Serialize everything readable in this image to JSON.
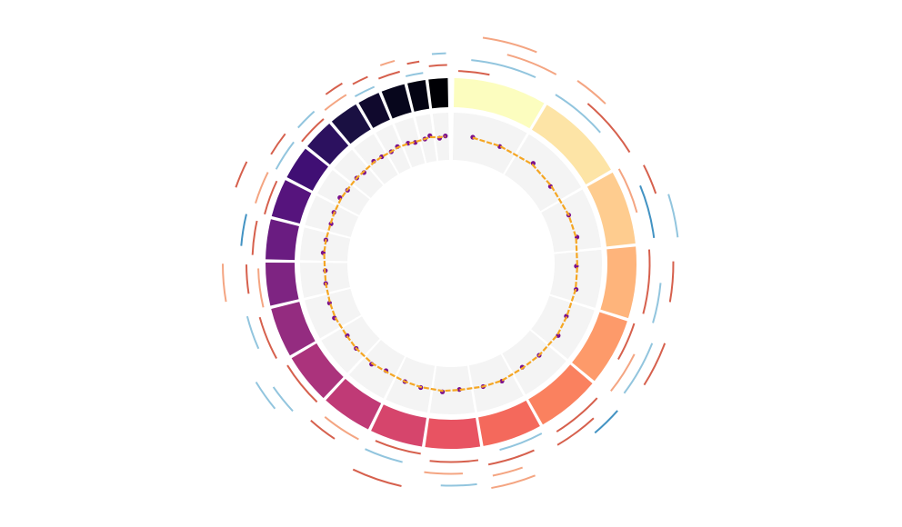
{
  "chart_data": {
    "type": "circos",
    "ideogram": {
      "lengths": [
        249,
        243,
        198,
        191,
        181,
        171,
        159,
        146,
        141,
        136,
        135,
        133,
        115,
        107,
        102,
        90,
        83,
        78,
        59,
        63,
        48,
        51
      ],
      "colors": [
        "#fcfdbf",
        "#fde4a6",
        "#fecc8f",
        "#feb47b",
        "#fd9a6a",
        "#fa815f",
        "#f4695c",
        "#e85362",
        "#d6456c",
        "#c03a76",
        "#ab337c",
        "#942c80",
        "#7e2482",
        "#6a1c81",
        "#56147d",
        "#400f74",
        "#2c115f",
        "#1a1042",
        "#10092d",
        "#07061c",
        "#030312",
        "#000004"
      ]
    },
    "ylim": [
      0,
      1
    ],
    "points": {
      "color": "#7a0f8c",
      "chrom": [
        0,
        0,
        1,
        1,
        2,
        2,
        3,
        3,
        4,
        4,
        5,
        5,
        6,
        6,
        7,
        7,
        8,
        8,
        9,
        9,
        10,
        10,
        11,
        11,
        12,
        12,
        13,
        13,
        14,
        14,
        15,
        15,
        16,
        16,
        17,
        17,
        18,
        18,
        19,
        19,
        20,
        20,
        21,
        21
      ],
      "pos": [
        75,
        185,
        70,
        180,
        60,
        150,
        55,
        145,
        55,
        135,
        50,
        130,
        45,
        120,
        45,
        110,
        40,
        105,
        40,
        100,
        40,
        100,
        40,
        100,
        35,
        85,
        30,
        80,
        30,
        75,
        25,
        65,
        25,
        60,
        25,
        60,
        15,
        45,
        20,
        47,
        15,
        36,
        15,
        38
      ],
      "values": [
        0.52,
        0.49,
        0.55,
        0.47,
        0.5,
        0.53,
        0.46,
        0.51,
        0.49,
        0.54,
        0.5,
        0.47,
        0.52,
        0.5,
        0.48,
        0.53,
        0.51,
        0.49,
        0.46,
        0.52,
        0.5,
        0.48,
        0.53,
        0.51,
        0.49,
        0.47,
        0.52,
        0.5,
        0.48,
        0.51,
        0.54,
        0.49,
        0.5,
        0.47,
        0.52,
        0.5,
        0.49,
        0.53,
        0.51,
        0.48,
        0.5,
        0.55,
        0.47,
        0.51
      ]
    },
    "trend": {
      "color": "#f5a623",
      "values": [
        0.51,
        0.5,
        0.52,
        0.49,
        0.5,
        0.51,
        0.48,
        0.5,
        0.5,
        0.52,
        0.5,
        0.49,
        0.51,
        0.5,
        0.49,
        0.51,
        0.5,
        0.49,
        0.48,
        0.5,
        0.5,
        0.49,
        0.51,
        0.5,
        0.49,
        0.48,
        0.5,
        0.5,
        0.49,
        0.5,
        0.51,
        0.5,
        0.5,
        0.49,
        0.5,
        0.5,
        0.49,
        0.51,
        0.5,
        0.49,
        0.5,
        0.52,
        0.49,
        0.5
      ]
    },
    "arcs": {
      "colors": [
        "#d6604d",
        "#f4a582",
        "#92c5de",
        "#4393c3"
      ],
      "chrom": [
        0,
        0,
        0,
        1,
        1,
        1,
        2,
        2,
        2,
        3,
        3,
        3,
        4,
        4,
        4,
        5,
        5,
        5,
        6,
        6,
        6,
        7,
        7,
        7,
        8,
        8,
        9,
        9,
        10,
        10,
        11,
        11,
        12,
        12,
        13,
        13,
        14,
        14,
        15,
        15,
        16,
        16,
        17,
        17,
        18,
        18,
        19,
        19,
        20,
        20,
        21,
        21,
        0,
        2,
        4,
        6,
        8,
        10,
        12,
        14
      ],
      "start": [
        10,
        40,
        120,
        5,
        80,
        30,
        0,
        60,
        20,
        10,
        90,
        40,
        0,
        70,
        30,
        20,
        60,
        10,
        5,
        40,
        80,
        10,
        50,
        20,
        0,
        40,
        10,
        60,
        5,
        30,
        10,
        50,
        0,
        40,
        10,
        30,
        0,
        20,
        5,
        30,
        0,
        20,
        5,
        30,
        0,
        10,
        5,
        20,
        0,
        10,
        5,
        15,
        60,
        100,
        20,
        60,
        30,
        60,
        30,
        40
      ],
      "end": [
        90,
        200,
        240,
        150,
        230,
        110,
        120,
        190,
        90,
        170,
        185,
        130,
        100,
        175,
        160,
        150,
        165,
        80,
        120,
        155,
        150,
        130,
        140,
        100,
        120,
        135,
        110,
        130,
        125,
        100,
        120,
        130,
        100,
        110,
        95,
        105,
        90,
        100,
        85,
        88,
        80,
        75,
        70,
        76,
        55,
        50,
        60,
        55,
        45,
        40,
        50,
        48,
        180,
        195,
        120,
        158,
        140,
        130,
        112,
        100
      ],
      "lane": [
        0,
        2,
        4,
        1,
        3,
        5,
        0,
        2,
        4,
        1,
        3,
        5,
        0,
        2,
        4,
        1,
        3,
        5,
        0,
        2,
        4,
        1,
        3,
        5,
        0,
        2,
        1,
        3,
        0,
        4,
        1,
        3,
        0,
        2,
        1,
        3,
        0,
        2,
        1,
        3,
        0,
        2,
        1,
        3,
        0,
        2,
        1,
        3,
        0,
        2,
        1,
        3,
        6,
        6,
        6,
        6,
        6,
        6,
        6,
        6
      ],
      "kind": [
        0,
        2,
        1,
        2,
        0,
        1,
        1,
        3,
        0,
        0,
        2,
        0,
        0,
        1,
        2,
        0,
        0,
        3,
        2,
        0,
        1,
        0,
        1,
        2,
        0,
        2,
        1,
        0,
        0,
        2,
        0,
        2,
        1,
        0,
        0,
        3,
        0,
        1,
        2,
        0,
        0,
        2,
        1,
        0,
        2,
        0,
        0,
        1,
        2,
        0,
        0,
        2,
        1,
        2,
        0,
        1,
        0,
        2,
        1,
        0
      ]
    }
  }
}
